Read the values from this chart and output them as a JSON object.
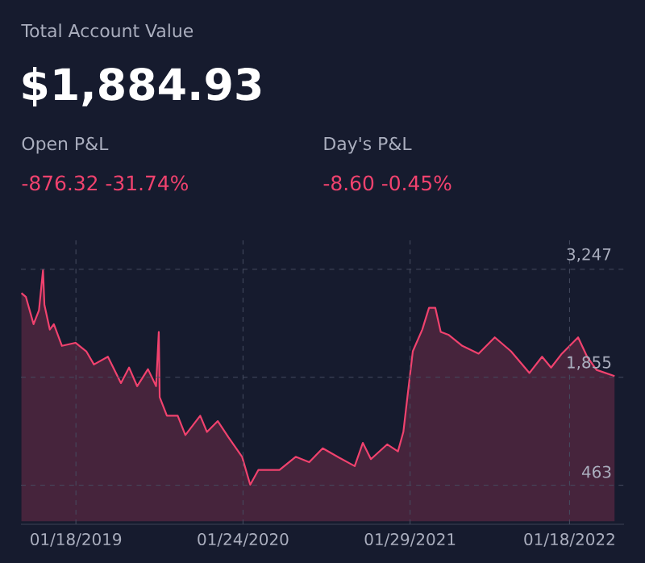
{
  "chart_data": {
    "type": "area",
    "title": "Total Account Value",
    "subtitle": "$1,884.93",
    "annotations": [
      "Open P&L",
      "-876.32 -31.74%",
      "Day's P&L",
      "-8.60 -0.45%"
    ],
    "x": [
      "2018-09-19",
      "2018-09-29",
      "2018-10-16",
      "2018-10-28",
      "2018-11-06",
      "2018-11-09",
      "2018-11-21",
      "2018-11-30",
      "2018-12-18",
      "2019-01-17",
      "2019-02-10",
      "2019-02-27",
      "2019-03-30",
      "2019-04-28",
      "2019-05-16",
      "2019-06-03",
      "2019-06-27",
      "2019-07-15",
      "2019-07-21",
      "2019-07-23",
      "2019-08-08",
      "2019-09-01",
      "2019-09-18",
      "2019-10-21",
      "2019-11-05",
      "2019-11-29",
      "2019-12-23",
      "2020-01-22",
      "2020-02-09",
      "2020-02-27",
      "2020-04-14",
      "2020-05-20",
      "2020-06-19",
      "2020-07-19",
      "2020-08-24",
      "2020-09-28",
      "2020-10-16",
      "2020-11-03",
      "2020-12-09",
      "2021-01-02",
      "2021-01-14",
      "2021-01-23",
      "2021-02-04",
      "2021-02-25",
      "2021-03-12",
      "2021-03-26",
      "2021-04-07",
      "2021-04-25",
      "2021-05-25",
      "2021-06-30",
      "2021-08-05",
      "2021-09-10",
      "2021-10-21",
      "2021-11-18",
      "2021-12-08",
      "2022-01-01",
      "2022-02-06",
      "2022-02-26",
      "2022-03-19",
      "2022-04-28"
    ],
    "series": [
      {
        "color": "#f0426e",
        "values": [
          2940,
          2890,
          2540,
          2720,
          3240,
          2790,
          2470,
          2540,
          2260,
          2300,
          2190,
          2020,
          2120,
          1780,
          1980,
          1740,
          1960,
          1740,
          2440,
          1600,
          1360,
          1360,
          1110,
          1360,
          1150,
          1290,
          1080,
          830,
          470,
          660,
          660,
          830,
          760,
          940,
          820,
          710,
          1010,
          800,
          990,
          900,
          1150,
          1600,
          2190,
          2470,
          2750,
          2750,
          2440,
          2400,
          2260,
          2160,
          2370,
          2190,
          1910,
          2120,
          1980,
          2160,
          2370,
          2120,
          1950,
          1870
        ]
      }
    ],
    "xlim": [
      "2018-09-18",
      "2022-05-19"
    ],
    "xticks": [
      {
        "value": "2019-01-18",
        "label": "01/18/2019"
      },
      {
        "value": "2020-01-24",
        "label": "01/24/2020"
      },
      {
        "value": "2021-01-29",
        "label": "01/29/2021"
      },
      {
        "value": "2022-01-18",
        "label": "01/18/2022"
      }
    ],
    "ylim": [
      -40,
      3620
    ],
    "yticks": [
      463,
      {
        "value": 1855,
        "label": "1,855"
      },
      {
        "value": 3247,
        "label": "3,247"
      }
    ],
    "grid": true
  }
}
